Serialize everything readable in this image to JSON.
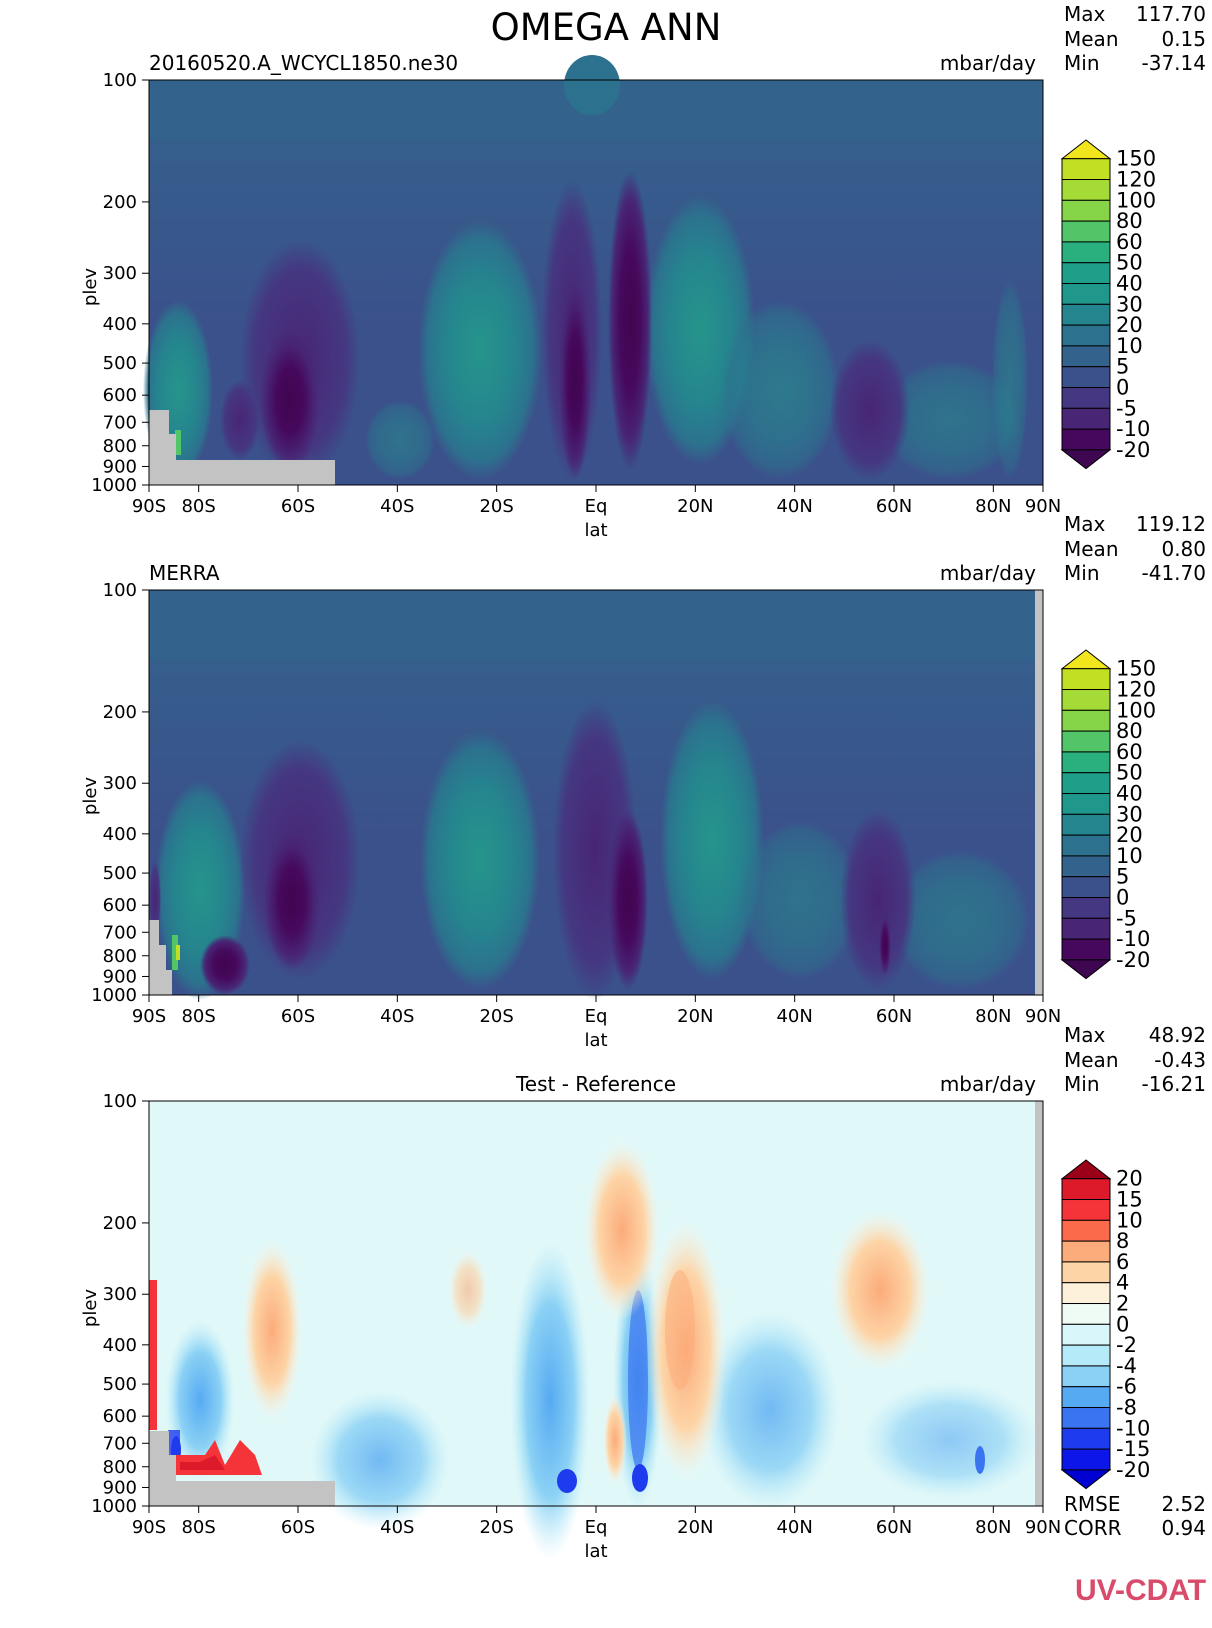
{
  "figure": {
    "title": "OMEGA ANN",
    "logo_text": "UV-CDAT"
  },
  "chart_data": [
    {
      "type": "heatmap",
      "subtitle_left": "20160520.A_WCYCL1850.ne30",
      "subtitle_right": "mbar/day",
      "xlabel": "lat",
      "ylabel": "plev",
      "ylim": [
        1000,
        100
      ],
      "y_scale": "log",
      "x_ticks": [
        "90S",
        "80S",
        "60S",
        "40S",
        "20S",
        "Eq",
        "20N",
        "40N",
        "60N",
        "80N",
        "90N"
      ],
      "y_ticks": [
        "100",
        "200",
        "300",
        "400",
        "500",
        "600",
        "700",
        "800",
        "900",
        "1000"
      ],
      "stats": [
        {
          "label": "Max",
          "value": "117.70"
        },
        {
          "label": "Mean",
          "value": "0.15"
        },
        {
          "label": "Min",
          "value": "-37.14"
        }
      ],
      "colorbar": {
        "levels": [
          "150",
          "120",
          "100",
          "80",
          "60",
          "50",
          "40",
          "30",
          "20",
          "10",
          "5",
          "0",
          "-5",
          "-10",
          "-20"
        ],
        "colors": [
          "#f1e51d",
          "#c2df23",
          "#a5db36",
          "#86d549",
          "#52c569",
          "#2ab07f",
          "#1f9e89",
          "#1f978b",
          "#25858e",
          "#2c728e",
          "#33638d",
          "#3b518b",
          "#453781",
          "#482575",
          "#46085c",
          "#3f0751"
        ]
      }
    },
    {
      "type": "heatmap",
      "subtitle_left": "MERRA",
      "subtitle_right": "mbar/day",
      "xlabel": "lat",
      "ylabel": "plev",
      "ylim": [
        1000,
        100
      ],
      "y_scale": "log",
      "x_ticks": [
        "90S",
        "80S",
        "60S",
        "40S",
        "20S",
        "Eq",
        "20N",
        "40N",
        "60N",
        "80N",
        "90N"
      ],
      "y_ticks": [
        "100",
        "200",
        "300",
        "400",
        "500",
        "600",
        "700",
        "800",
        "900",
        "1000"
      ],
      "stats": [
        {
          "label": "Max",
          "value": "119.12"
        },
        {
          "label": "Mean",
          "value": "0.80"
        },
        {
          "label": "Min",
          "value": "-41.70"
        }
      ],
      "colorbar": {
        "levels": [
          "150",
          "120",
          "100",
          "80",
          "60",
          "50",
          "40",
          "30",
          "20",
          "10",
          "5",
          "0",
          "-5",
          "-10",
          "-20"
        ],
        "colors": [
          "#f1e51d",
          "#c2df23",
          "#a5db36",
          "#86d549",
          "#52c569",
          "#2ab07f",
          "#1f9e89",
          "#1f978b",
          "#25858e",
          "#2c728e",
          "#33638d",
          "#3b518b",
          "#453781",
          "#482575",
          "#46085c",
          "#3f0751"
        ]
      }
    },
    {
      "type": "heatmap",
      "subtitle_left": "Test - Reference",
      "subtitle_right": "mbar/day",
      "xlabel": "lat",
      "ylabel": "plev",
      "ylim": [
        1000,
        100
      ],
      "y_scale": "log",
      "x_ticks": [
        "90S",
        "80S",
        "60S",
        "40S",
        "20S",
        "Eq",
        "20N",
        "40N",
        "60N",
        "80N",
        "90N"
      ],
      "y_ticks": [
        "100",
        "200",
        "300",
        "400",
        "500",
        "600",
        "700",
        "800",
        "900",
        "1000"
      ],
      "stats": [
        {
          "label": "Max",
          "value": "48.92"
        },
        {
          "label": "Mean",
          "value": "-0.43"
        },
        {
          "label": "Min",
          "value": "-16.21"
        }
      ],
      "metrics": [
        {
          "label": "RMSE",
          "value": "2.52"
        },
        {
          "label": "CORR",
          "value": "0.94"
        }
      ],
      "colorbar": {
        "levels": [
          "20",
          "15",
          "10",
          "8",
          "6",
          "4",
          "2",
          "0",
          "-2",
          "-4",
          "-6",
          "-8",
          "-10",
          "-15",
          "-20"
        ],
        "colors": [
          "#9b0019",
          "#dc1a2a",
          "#f5343a",
          "#fb6a4a",
          "#fcab7a",
          "#fdd4a6",
          "#fdf1dc",
          "#effcf5",
          "#d9f6fa",
          "#b5ebf8",
          "#8bd1f5",
          "#56aaf2",
          "#3a74f0",
          "#1e3cee",
          "#0d16e9",
          "#0000d0"
        ]
      }
    }
  ]
}
